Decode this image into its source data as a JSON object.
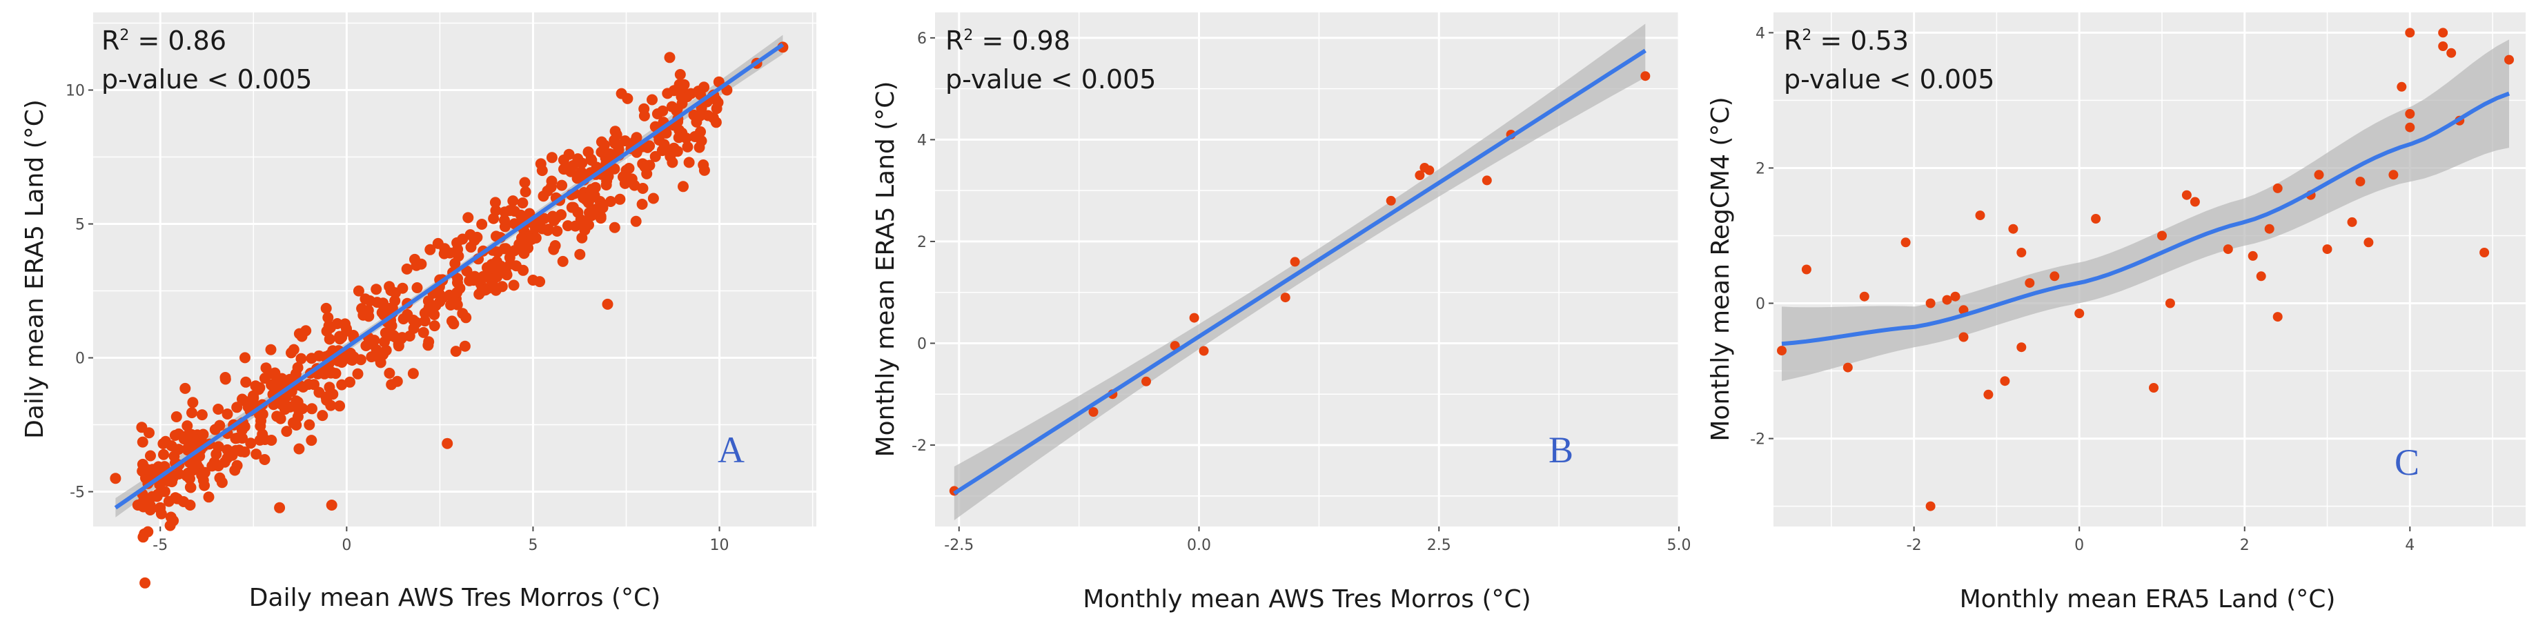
{
  "figure": {
    "panels": [
      {
        "letter": "A",
        "stat_r2_prefix": "R",
        "stat_r2_sup": "2",
        "stat_r2_value": " = 0.86",
        "stat_p": "p-value < 0.005",
        "xlabel": "Daily mean AWS Tres Morros (°C)",
        "ylabel": "Daily mean ERA5 Land (°C)"
      },
      {
        "letter": "B",
        "stat_r2_prefix": "R",
        "stat_r2_sup": "2",
        "stat_r2_value": " = 0.98",
        "stat_p": "p-value < 0.005",
        "xlabel": "Monthly mean AWS Tres Morros (°C)",
        "ylabel": "Monthly mean ERA5 Land (°C)"
      },
      {
        "letter": "C",
        "stat_r2_prefix": "R",
        "stat_r2_sup": "2",
        "stat_r2_value": " = 0.53",
        "stat_p": "p-value < 0.005",
        "xlabel": "Monthly mean ERA5 Land (°C)",
        "ylabel": "Monthly mean RegCM4 (°C)"
      }
    ]
  },
  "colors": {
    "panel_bg": "#ebebeb",
    "grid_major": "#ffffff",
    "points": "#e8400c",
    "fit_line": "#3b78e7",
    "ci_band": "#b8b8b8",
    "letter": "#3a60c8"
  },
  "chart_data": [
    {
      "type": "scatter",
      "title": "",
      "xlabel": "Daily mean AWS Tres Morros (°C)",
      "ylabel": "Daily mean ERA5 Land (°C)",
      "xlim": [
        -6.8,
        12.6
      ],
      "ylim": [
        -6.3,
        12.9
      ],
      "xticks": [
        -5,
        0,
        5,
        10
      ],
      "yticks": [
        -5,
        0,
        5,
        10
      ],
      "annotations": [
        "R2 = 0.86",
        "p-value < 0.005",
        "A"
      ],
      "fit": {
        "type": "linear",
        "x": [
          -6.2,
          11.7
        ],
        "y": [
          -5.6,
          11.7
        ],
        "ci_halfwidth": 0.15
      },
      "sample_points": [
        [
          -6.2,
          -4.5
        ],
        [
          -5.6,
          -5.5
        ],
        [
          -5.3,
          -2.8
        ],
        [
          -5.0,
          -5.6
        ],
        [
          -4.8,
          -4.6
        ],
        [
          -4.5,
          -4.0
        ],
        [
          -4.2,
          -5.5
        ],
        [
          -4.0,
          -3.0
        ],
        [
          -3.7,
          -5.2
        ],
        [
          -3.5,
          -3.6
        ],
        [
          -3.2,
          -2.1
        ],
        [
          -3.0,
          -4.2
        ],
        [
          -2.8,
          -3.0
        ],
        [
          -2.5,
          -1.5
        ],
        [
          -2.2,
          -3.8
        ],
        [
          -2.0,
          -0.6
        ],
        [
          -1.8,
          -5.6
        ],
        [
          -1.5,
          -1.2
        ],
        [
          -1.2,
          0.8
        ],
        [
          -1.0,
          -2.5
        ],
        [
          -0.8,
          -0.4
        ],
        [
          -0.5,
          1.5
        ],
        [
          -0.4,
          -5.5
        ],
        [
          -0.2,
          0.1
        ],
        [
          0.0,
          1.0
        ],
        [
          0.3,
          -0.6
        ],
        [
          0.5,
          2.2
        ],
        [
          0.8,
          0.3
        ],
        [
          1.0,
          1.6
        ],
        [
          1.2,
          -1.0
        ],
        [
          1.5,
          2.6
        ],
        [
          1.8,
          1.1
        ],
        [
          2.0,
          3.5
        ],
        [
          2.2,
          0.6
        ],
        [
          2.5,
          2.1
        ],
        [
          2.7,
          -3.2
        ],
        [
          3.0,
          3.8
        ],
        [
          3.2,
          1.5
        ],
        [
          3.5,
          4.5
        ],
        [
          3.8,
          2.6
        ],
        [
          4.0,
          5.5
        ],
        [
          4.3,
          3.1
        ],
        [
          4.5,
          4.0
        ],
        [
          4.8,
          6.2
        ],
        [
          5.0,
          2.9
        ],
        [
          5.3,
          5.2
        ],
        [
          5.5,
          6.6
        ],
        [
          5.8,
          3.6
        ],
        [
          6.0,
          7.1
        ],
        [
          6.3,
          5.0
        ],
        [
          6.6,
          6.0
        ],
        [
          7.0,
          2.0
        ],
        [
          7.2,
          8.0
        ],
        [
          7.5,
          7.0
        ],
        [
          8.0,
          7.2
        ],
        [
          8.5,
          8.8
        ],
        [
          9.0,
          9.5
        ],
        [
          9.6,
          7.0
        ],
        [
          10.2,
          10.0
        ],
        [
          11.0,
          11.0
        ],
        [
          11.7,
          11.6
        ]
      ]
    },
    {
      "type": "scatter",
      "title": "",
      "xlabel": "Monthly mean AWS Tres Morros (°C)",
      "ylabel": "Monthly mean ERA5 Land (°C)",
      "xlim": [
        -2.75,
        5.0
      ],
      "ylim": [
        -3.6,
        6.5
      ],
      "xticks": [
        -2.5,
        0.0,
        2.5,
        5.0
      ],
      "xtick_labels": [
        "-2.5",
        "0.0",
        "2.5",
        "5.0"
      ],
      "yticks": [
        -2,
        0,
        2,
        4,
        6
      ],
      "annotations": [
        "R2 = 0.98",
        "p-value < 0.005",
        "B"
      ],
      "fit": {
        "type": "linear",
        "x": [
          -2.55,
          4.65
        ],
        "y": [
          -2.95,
          5.75
        ],
        "ci_halfwidth": 0.22
      },
      "points": [
        [
          -2.55,
          -2.9
        ],
        [
          -1.1,
          -1.35
        ],
        [
          -0.9,
          -1.0
        ],
        [
          -0.55,
          -0.75
        ],
        [
          -0.25,
          -0.05
        ],
        [
          -0.05,
          0.5
        ],
        [
          0.05,
          -0.15
        ],
        [
          0.9,
          0.9
        ],
        [
          1.0,
          1.6
        ],
        [
          2.0,
          2.8
        ],
        [
          2.3,
          3.3
        ],
        [
          2.35,
          3.45
        ],
        [
          2.4,
          3.4
        ],
        [
          3.0,
          3.2
        ],
        [
          3.25,
          4.1
        ],
        [
          4.65,
          5.25
        ]
      ]
    },
    {
      "type": "scatter",
      "title": "",
      "xlabel": "Monthly mean ERA5 Land (°C)",
      "ylabel": "Monthly mean RegCM4 (°C)",
      "xlim": [
        -3.7,
        5.4
      ],
      "ylim": [
        -3.3,
        4.3
      ],
      "xticks": [
        -2,
        0,
        2,
        4
      ],
      "yticks": [
        -2,
        0,
        2,
        4
      ],
      "annotations": [
        "R2 = 0.53",
        "p-value < 0.005",
        "C"
      ],
      "fit": {
        "type": "loess",
        "x": [
          -3.6,
          -2.0,
          0.0,
          2.0,
          4.0,
          5.2
        ],
        "y": [
          -0.6,
          -0.35,
          0.3,
          1.2,
          2.35,
          3.1
        ],
        "ci_halfwidth": [
          0.55,
          0.3,
          0.3,
          0.35,
          0.55,
          0.8
        ]
      },
      "points": [
        [
          -3.6,
          -0.7
        ],
        [
          -3.3,
          0.5
        ],
        [
          -2.8,
          -0.95
        ],
        [
          -2.6,
          0.1
        ],
        [
          -2.1,
          0.9
        ],
        [
          -1.8,
          0.0
        ],
        [
          -1.8,
          -3.0
        ],
        [
          -1.6,
          0.05
        ],
        [
          -1.5,
          0.1
        ],
        [
          -1.4,
          -0.5
        ],
        [
          -1.4,
          -0.1
        ],
        [
          -1.2,
          1.3
        ],
        [
          -1.1,
          -1.35
        ],
        [
          -0.9,
          -1.15
        ],
        [
          -0.8,
          1.1
        ],
        [
          -0.7,
          0.75
        ],
        [
          -0.7,
          -0.65
        ],
        [
          -0.6,
          0.3
        ],
        [
          -0.3,
          0.4
        ],
        [
          0.0,
          -0.15
        ],
        [
          0.2,
          1.25
        ],
        [
          0.9,
          -1.25
        ],
        [
          1.0,
          1.0
        ],
        [
          1.1,
          0.0
        ],
        [
          1.3,
          1.6
        ],
        [
          1.4,
          1.5
        ],
        [
          1.8,
          0.8
        ],
        [
          2.1,
          0.7
        ],
        [
          2.2,
          0.4
        ],
        [
          2.3,
          1.1
        ],
        [
          2.4,
          1.7
        ],
        [
          2.4,
          -0.2
        ],
        [
          2.8,
          1.6
        ],
        [
          2.9,
          1.9
        ],
        [
          3.0,
          0.8
        ],
        [
          3.3,
          1.2
        ],
        [
          3.4,
          1.8
        ],
        [
          3.5,
          0.9
        ],
        [
          3.8,
          1.9
        ],
        [
          3.9,
          3.2
        ],
        [
          4.0,
          2.8
        ],
        [
          4.0,
          2.6
        ],
        [
          4.0,
          4.0
        ],
        [
          4.4,
          3.8
        ],
        [
          4.4,
          4.0
        ],
        [
          4.5,
          3.7
        ],
        [
          4.6,
          2.7
        ],
        [
          4.9,
          0.75
        ],
        [
          5.2,
          3.6
        ]
      ]
    }
  ]
}
